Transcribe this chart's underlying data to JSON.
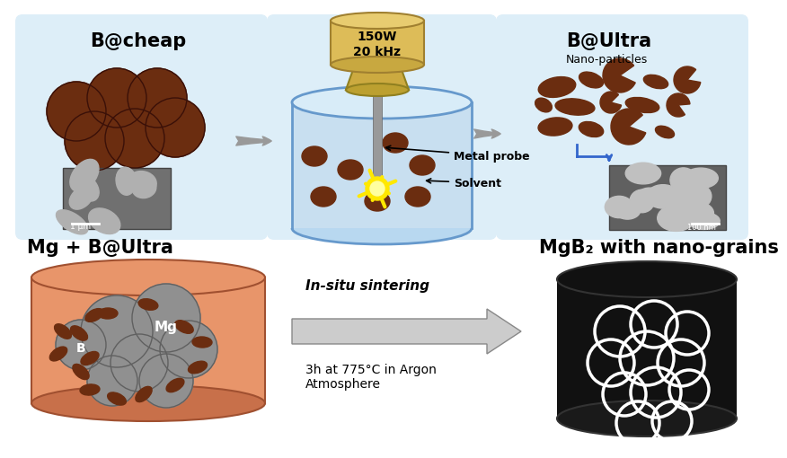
{
  "background_color": "#ffffff",
  "panel_color": "#ddeef8",
  "brown": "#6B2D10",
  "gray_mg": "#909090",
  "orange": "#E8956A",
  "arrow_gray": "#aaaaaa",
  "labels": {
    "b_cheap": "B@cheap",
    "b_ultra": "B@Ultra",
    "nano_particles": "Nano-particles",
    "mg_b_ultra": "Mg + B@Ultra",
    "mgb2": "MgB₂ with nano-grains",
    "metal_probe": "Metal probe",
    "solvent": "Solvent",
    "power": "150W\n20 kHz",
    "sintering": "In-situ sintering",
    "conditions": "3h at 775°C in Argon\nAtmosphere",
    "scale1": "1 μm",
    "scale2": "100 nm",
    "mg_label": "Mg",
    "b_label": "B"
  }
}
